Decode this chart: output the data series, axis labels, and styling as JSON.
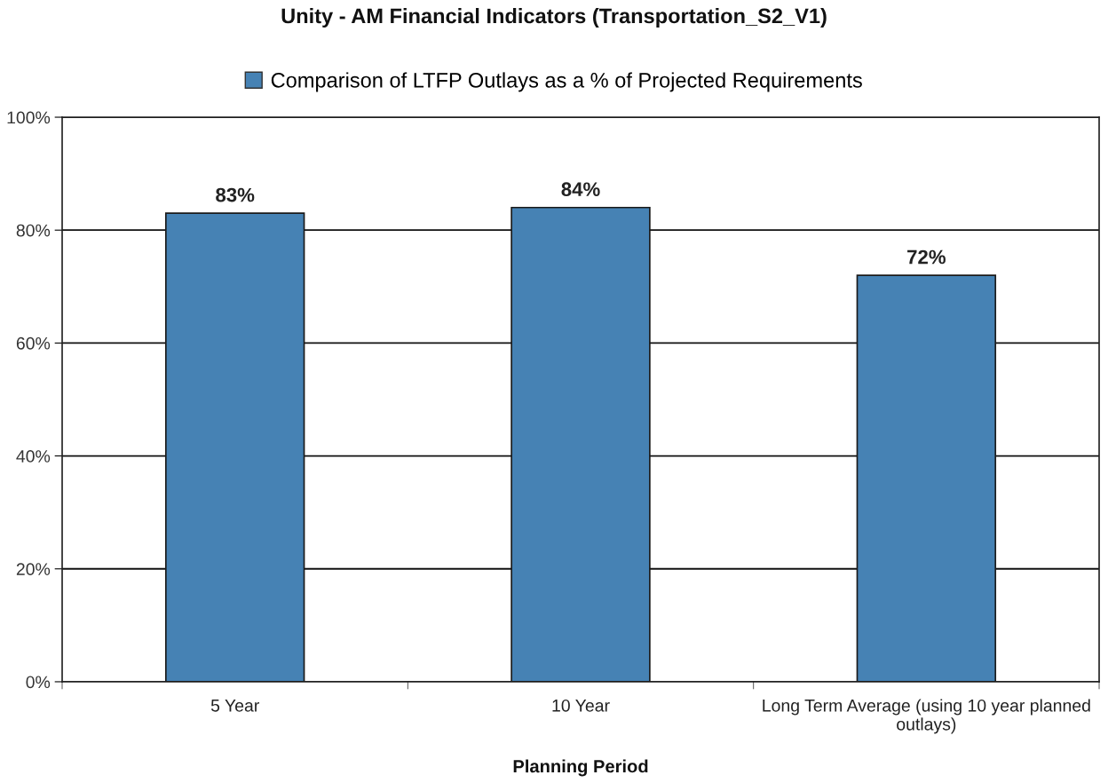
{
  "chart_data": {
    "type": "bar",
    "title": "Unity - AM Financial Indicators (Transportation_S2_V1)",
    "xlabel": "Planning Period",
    "categories": [
      "5 Year",
      "10 Year",
      "Long Term Average (using 10 year planned outlays)"
    ],
    "series": [
      {
        "name": "Comparison of LTFP Outlays as a % of Projected Requirements",
        "color": "#4682b4",
        "values": [
          83,
          84,
          72
        ],
        "value_labels": [
          "83%",
          "84%",
          "72%"
        ]
      }
    ],
    "ylim": [
      0,
      100
    ],
    "yticks": [
      {
        "value": 0,
        "label": "0%"
      },
      {
        "value": 20,
        "label": "20%"
      },
      {
        "value": 40,
        "label": "40%"
      },
      {
        "value": 60,
        "label": "60%"
      },
      {
        "value": 80,
        "label": "80%"
      },
      {
        "value": 100,
        "label": "100%"
      }
    ],
    "grid": "y",
    "legend": "top"
  }
}
